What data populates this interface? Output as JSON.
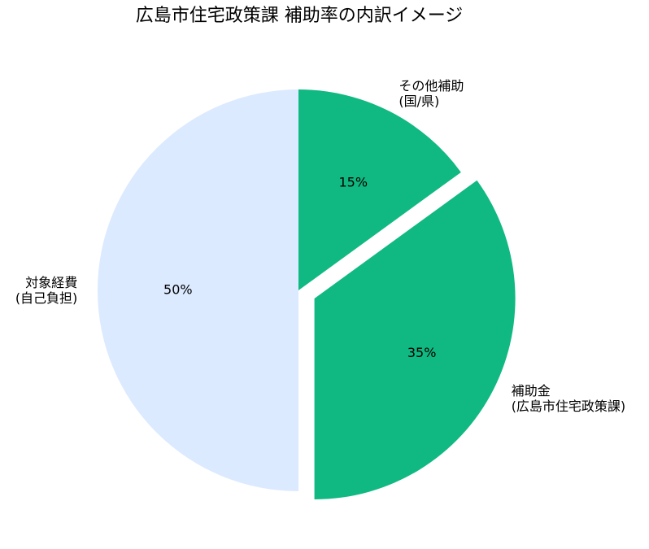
{
  "chart_data": {
    "type": "pie",
    "title": "広島市住宅政策課 補助率の内訳イメージ",
    "categories": [
      "その他補助\n(国/県)",
      "補助金\n(広島市住宅政策課)",
      "対象経費\n(自己負担)"
    ],
    "values": [
      15,
      35,
      50
    ],
    "value_labels": [
      "15%",
      "35%",
      "50%"
    ],
    "colors": [
      "#10b981",
      "#10b981",
      "#dbeafe"
    ],
    "exploded": [
      false,
      true,
      false
    ],
    "start_angle": 90,
    "direction": "clockwise"
  }
}
